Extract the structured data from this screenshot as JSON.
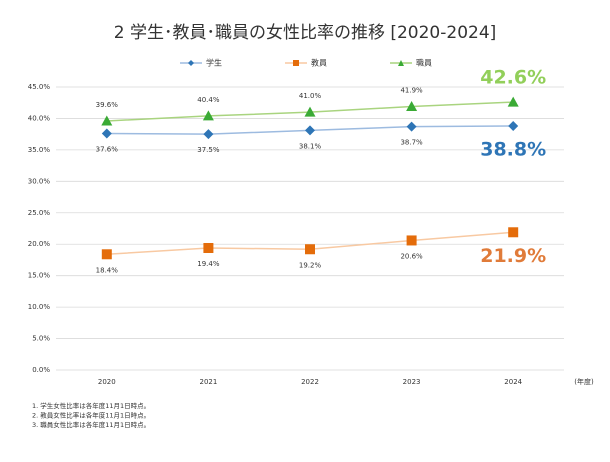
{
  "chart_data": {
    "type": "line",
    "title": "2 学生･教員･職員の女性比率の推移 [2020-2024]",
    "categories": [
      "2020",
      "2021",
      "2022",
      "2023",
      "2024"
    ],
    "x_label": "(年度)",
    "series": [
      {
        "name": "学生",
        "color": "#2e75b6",
        "line_color": "#9dbbe0",
        "marker": "diamond",
        "label_color": "#2e75b6",
        "values": [
          37.6,
          37.5,
          38.1,
          38.7,
          38.8
        ],
        "value_labels": [
          "37.6%",
          "37.5%",
          "38.1%",
          "38.7%",
          "38.8%"
        ],
        "label_side": "below"
      },
      {
        "name": "教員",
        "color": "#e46c0a",
        "line_color": "#f8c9a2",
        "marker": "square",
        "label_color": "#e07b39",
        "values": [
          18.4,
          19.4,
          19.2,
          20.6,
          21.9
        ],
        "value_labels": [
          "18.4%",
          "19.4%",
          "19.2%",
          "20.6%",
          "21.9%"
        ],
        "label_side": "below"
      },
      {
        "name": "職員",
        "color": "#3aaa35",
        "line_color": "#a9d47f",
        "marker": "triangle",
        "label_color": "#92cf5a",
        "values": [
          39.6,
          40.4,
          41.0,
          41.9,
          42.6
        ],
        "value_labels": [
          "39.6%",
          "40.4%",
          "41.0%",
          "41.9%",
          "42.6%"
        ],
        "label_side": "above"
      }
    ],
    "highlight_last": true,
    "ylim": [
      0,
      45
    ],
    "yticks": [
      {
        "value": 0,
        "label": "0.0%"
      },
      {
        "value": 5,
        "label": "5.0%"
      },
      {
        "value": 10,
        "label": "10.0%"
      },
      {
        "value": 15,
        "label": "15.0%"
      },
      {
        "value": 20,
        "label": "20.0%"
      },
      {
        "value": 25,
        "label": "25.0%"
      },
      {
        "value": 30,
        "label": "30.0%"
      },
      {
        "value": 35,
        "label": "35.0%"
      },
      {
        "value": 40,
        "label": "40.0%"
      },
      {
        "value": 45,
        "label": "45.0%"
      }
    ],
    "grid": true,
    "legend": "top",
    "notes": [
      "1. 学生女性比率は各年度11月1日時点。",
      "2. 教員女性比率は各年度11月1日時点。",
      "3. 職員女性比率は各年度11月1日時点。"
    ]
  }
}
